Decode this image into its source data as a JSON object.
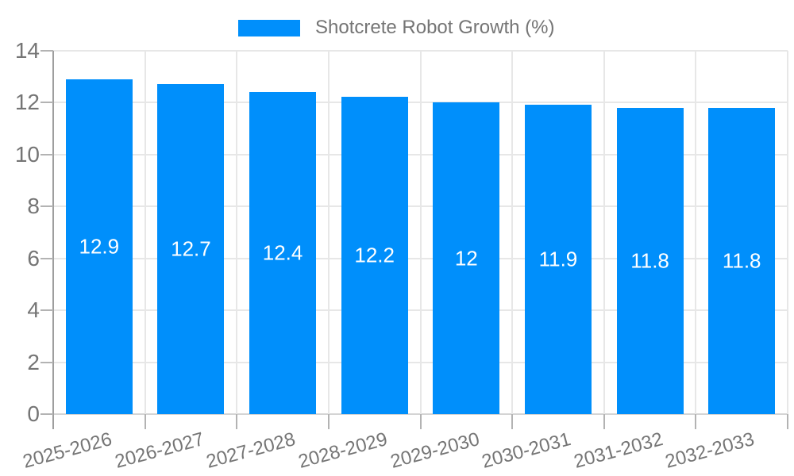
{
  "legend": {
    "label": "Shotcrete Robot Growth (%)"
  },
  "chart_data": {
    "type": "bar",
    "title": "Shotcrete Robot Growth (%)",
    "categories": [
      "2025-2026",
      "2026-2027",
      "2027-2028",
      "2028-2029",
      "2029-2030",
      "2030-2031",
      "2031-2032",
      "2032-2033"
    ],
    "values": [
      12.9,
      12.7,
      12.4,
      12.2,
      12,
      11.9,
      11.8,
      11.8
    ],
    "value_labels": [
      "12.9",
      "12.7",
      "12.4",
      "12.2",
      "12",
      "11.9",
      "11.8",
      "11.8"
    ],
    "xlabel": "",
    "ylabel": "",
    "ylim": [
      0,
      14
    ],
    "yticks": [
      0,
      2,
      4,
      6,
      8,
      10,
      12,
      14
    ],
    "grid": true,
    "legend_position": "top",
    "x_label_rotation": -15,
    "colors": {
      "bar": "#008FFB",
      "grid": "#e7e7e7",
      "baseline": "#d4d4d4",
      "axis": "#9e9e9e",
      "tick": "#b3b3b3",
      "label_text": "#757575",
      "value_text": "#ffffff"
    }
  }
}
